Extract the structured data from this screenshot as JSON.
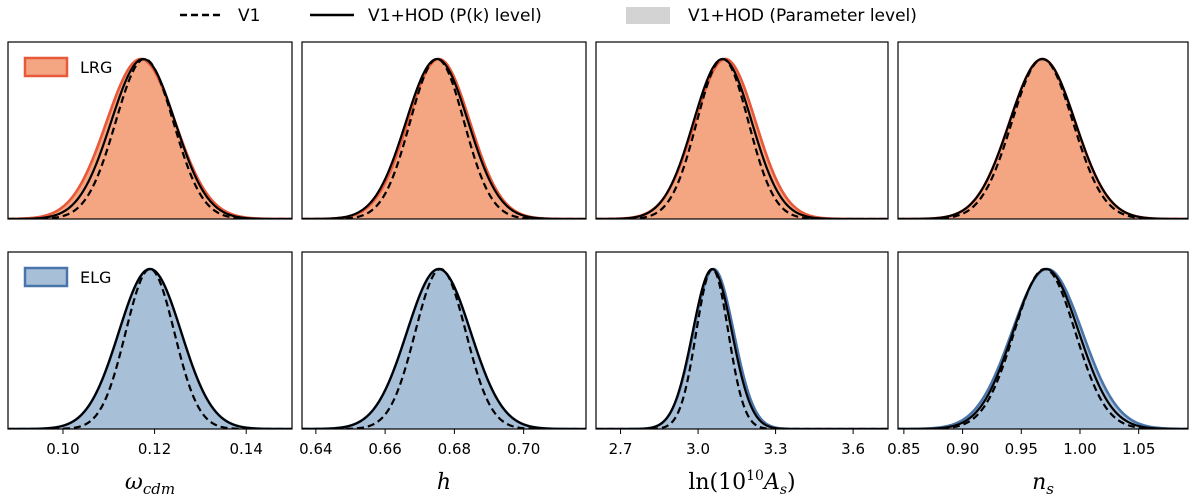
{
  "legend": {
    "entries": [
      {
        "label": "V1",
        "style": "dashed",
        "color": "#000000"
      },
      {
        "label": "V1+HOD (P(k) level)",
        "style": "solid",
        "color": "#000000"
      },
      {
        "label": "V1+HOD (Parameter level)",
        "style": "fill",
        "color": "#d3d3d3"
      }
    ]
  },
  "chart_data": {
    "type": "area",
    "rows": [
      {
        "tracer": "LRG",
        "fill_color": "#f4a582",
        "edge_color": "#e8593a"
      },
      {
        "tracer": "ELG",
        "fill_color": "#a8bfd8",
        "edge_color": "#4a75aa"
      }
    ],
    "columns": [
      {
        "parameter": "ω_cdm",
        "xlabel_main": "ω",
        "xlabel_sub": "cdm",
        "xlim": [
          0.088,
          0.15
        ],
        "xticks": [
          0.1,
          0.12,
          0.14
        ],
        "xtick_labels": [
          "0.10",
          "0.12",
          "0.14"
        ],
        "curves": {
          "LRG": {
            "fill": {
              "mean": 0.117,
              "sigma": 0.0075
            },
            "solid": {
              "mean": 0.1175,
              "sigma": 0.007
            },
            "dashed": {
              "mean": 0.1178,
              "sigma": 0.0063
            }
          },
          "ELG": {
            "fill": {
              "mean": 0.119,
              "sigma": 0.0068
            },
            "solid": {
              "mean": 0.119,
              "sigma": 0.0068
            },
            "dashed": {
              "mean": 0.119,
              "sigma": 0.0053
            }
          }
        }
      },
      {
        "parameter": "h",
        "xlabel_main": "h",
        "xlabel_sub": "",
        "xlim": [
          0.636,
          0.718
        ],
        "xticks": [
          0.64,
          0.66,
          0.68,
          0.7
        ],
        "xtick_labels": [
          "0.64",
          "0.66",
          "0.68",
          "0.70"
        ],
        "curves": {
          "LRG": {
            "fill": {
              "mean": 0.6755,
              "sigma": 0.009
            },
            "solid": {
              "mean": 0.675,
              "sigma": 0.009
            },
            "dashed": {
              "mean": 0.675,
              "sigma": 0.0078
            }
          },
          "ELG": {
            "fill": {
              "mean": 0.6755,
              "sigma": 0.0092
            },
            "solid": {
              "mean": 0.6755,
              "sigma": 0.0092
            },
            "dashed": {
              "mean": 0.676,
              "sigma": 0.0073
            }
          }
        }
      },
      {
        "parameter": "ln(10^10 A_s)",
        "xlabel_main": "ln(10",
        "xlabel_sup": "10",
        "xlabel_tail": "A",
        "xlabel_sub": "s",
        "xlim": [
          2.605,
          3.735
        ],
        "xticks": [
          2.7,
          3.0,
          3.3,
          3.6
        ],
        "xtick_labels": [
          "2.7",
          "3.0",
          "3.3",
          "3.6"
        ],
        "curves": {
          "LRG": {
            "fill": {
              "mean": 3.105,
              "sigma": 0.118
            },
            "solid": {
              "mean": 3.095,
              "sigma": 0.113
            },
            "dashed": {
              "mean": 3.095,
              "sigma": 0.1
            }
          },
          "ELG": {
            "fill": {
              "mean": 3.06,
              "sigma": 0.078
            },
            "solid": {
              "mean": 3.055,
              "sigma": 0.076
            },
            "dashed": {
              "mean": 3.055,
              "sigma": 0.062
            }
          }
        }
      },
      {
        "parameter": "n_s",
        "xlabel_main": "n",
        "xlabel_sub": "s",
        "xlim": [
          0.845,
          1.092
        ],
        "xticks": [
          0.85,
          0.9,
          0.95,
          1.0,
          1.05
        ],
        "xtick_labels": [
          "0.85",
          "0.90",
          "0.95",
          "1.00",
          "1.05"
        ],
        "curves": {
          "LRG": {
            "fill": {
              "mean": 0.968,
              "sigma": 0.028
            },
            "solid": {
              "mean": 0.968,
              "sigma": 0.028
            },
            "dashed": {
              "mean": 0.968,
              "sigma": 0.026
            }
          },
          "ELG": {
            "fill": {
              "mean": 0.972,
              "sigma": 0.03
            },
            "solid": {
              "mean": 0.971,
              "sigma": 0.028
            },
            "dashed": {
              "mean": 0.97,
              "sigma": 0.026
            }
          }
        }
      }
    ]
  }
}
